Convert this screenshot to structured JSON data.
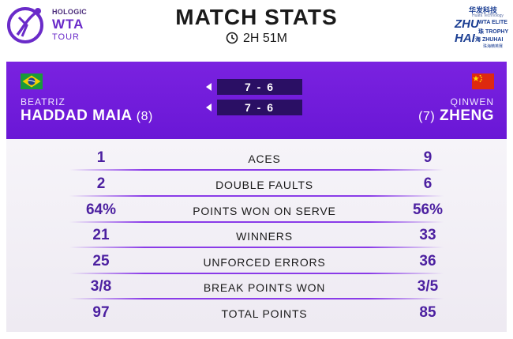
{
  "header": {
    "sponsor": "HOLOGIC",
    "tour_name": "WTA",
    "tour_sub": "TOUR",
    "title": "MATCH STATS",
    "duration": "2H 51M",
    "event_logo": {
      "cn_top": "华发科技",
      "cn_sub": "Huafa Technology",
      "zhu": "ZHU",
      "hai": "HAI",
      "r1": "WTA ELITE",
      "r2": "珠 TROPHY",
      "r3": "海 ZHUHAI",
      "r4": "珠海精英赛"
    }
  },
  "players": {
    "p1": {
      "first": "BEATRIZ",
      "last": "HADDAD MAIA",
      "seed": "(8)",
      "flag": "flag-brazil"
    },
    "p2": {
      "first": "QINWEN",
      "last": "ZHENG",
      "seed": "(7)",
      "flag": "flag-china"
    }
  },
  "score": {
    "sets": [
      {
        "value": "7 - 6"
      },
      {
        "value": "7 - 6"
      }
    ]
  },
  "stats": [
    {
      "label": "ACES",
      "p1": "1",
      "p2": "9"
    },
    {
      "label": "DOUBLE FAULTS",
      "p1": "2",
      "p2": "6"
    },
    {
      "label": "POINTS WON ON SERVE",
      "p1": "64%",
      "p2": "56%"
    },
    {
      "label": "WINNERS",
      "p1": "21",
      "p2": "33"
    },
    {
      "label": "UNFORCED ERRORS",
      "p1": "25",
      "p2": "36"
    },
    {
      "label": "BREAK POINTS WON",
      "p1": "3/8",
      "p2": "3/5"
    },
    {
      "label": "TOTAL POINTS",
      "p1": "97",
      "p2": "85"
    }
  ],
  "colors": {
    "band": "#6a17d6",
    "score_box": "#2a0f64",
    "stat_value": "#4b1fa0",
    "accent_line": "#8a3be8"
  }
}
